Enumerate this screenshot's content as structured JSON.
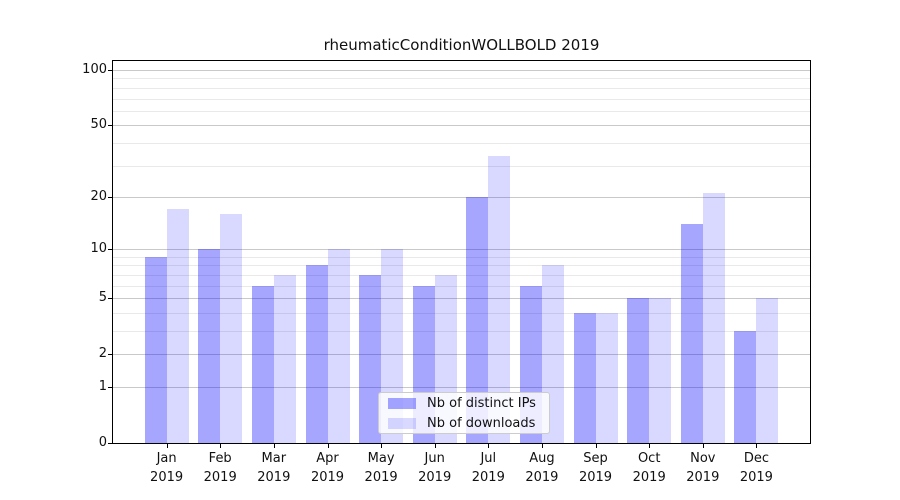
{
  "title": "rheumaticConditionWOLLBOLD 2019",
  "legend": {
    "items": [
      {
        "label": "Nb of distinct IPs"
      },
      {
        "label": "Nb of downloads"
      }
    ]
  },
  "colors": {
    "bar_distinct_ips": "rgba(0,0,255,0.35)",
    "bar_downloads": "rgba(0,0,255,0.15)",
    "grid_major": "#c9c9c9",
    "grid_minor": "#e9e9e9",
    "spine": "#000000"
  },
  "chart_data": {
    "type": "bar",
    "title": "rheumaticConditionWOLLBOLD 2019",
    "categories": [
      "Jan",
      "Feb",
      "Mar",
      "Apr",
      "May",
      "Jun",
      "Jul",
      "Aug",
      "Sep",
      "Oct",
      "Nov",
      "Dec"
    ],
    "year": "2019",
    "series": [
      {
        "name": "Nb of distinct IPs",
        "color": "rgba(0,0,255,0.35)",
        "values": [
          9,
          10,
          6,
          8,
          7,
          6,
          20,
          6,
          4,
          5,
          14,
          3
        ]
      },
      {
        "name": "Nb of downloads",
        "color": "rgba(0,0,255,0.15)",
        "values": [
          17,
          16,
          7,
          10,
          10,
          7,
          34,
          8,
          4,
          5,
          21,
          5
        ]
      }
    ],
    "xlabel": "",
    "ylabel": "",
    "yscale": "log1p",
    "y_ticks": [
      100,
      50,
      20,
      10,
      5,
      2,
      1,
      0
    ],
    "y_minor_gridlines": [
      3,
      4,
      6,
      7,
      8,
      9,
      30,
      40,
      60,
      70,
      80,
      90
    ],
    "ylim": [
      0,
      112
    ],
    "grid": true,
    "legend_position": "lower center"
  }
}
